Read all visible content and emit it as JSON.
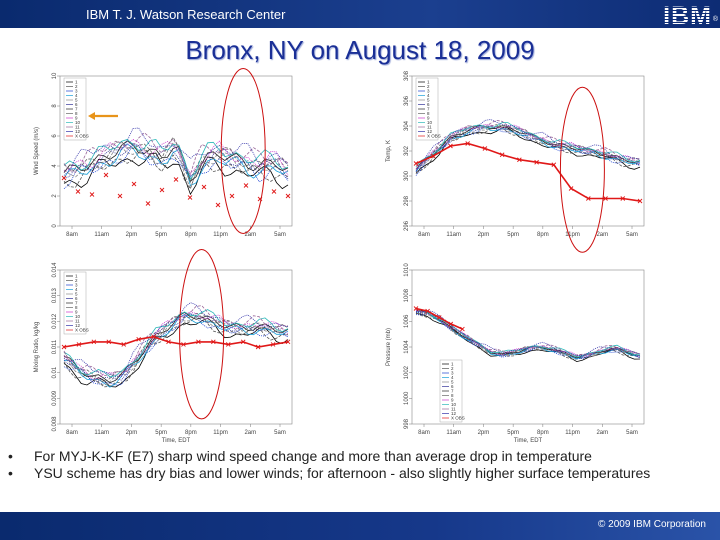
{
  "header": {
    "org": "IBM T. J. Watson Research Center",
    "logo": "IBM",
    "logo_mark": "®"
  },
  "title": "Bronx, NY on August 18, 2009",
  "bullets": [
    "For MYJ-K-KF (E7) sharp wind speed change and more than average drop in temperature",
    "YSU scheme has dry bias and lower winds; for afternoon - also slightly higher surface temperatures"
  ],
  "footer": {
    "copyright": "© 2009 IBM Corporation"
  },
  "legend": [
    "1",
    "2",
    "3",
    "4",
    "5",
    "6",
    "7",
    "8",
    "9",
    "10",
    "11",
    "12",
    "X OBS"
  ],
  "colors": {
    "obs": "#e01818",
    "highlight_ellipse": "#cc1010",
    "arrow": "#e8941a"
  },
  "chart_data": [
    {
      "type": "line",
      "title": "",
      "ylabel": "Wind Speed (m/s)",
      "xlabel": "",
      "x_ticks": [
        "8am",
        "11am",
        "2pm",
        "5pm",
        "8pm",
        "11pm",
        "2am",
        "5am"
      ],
      "y_ticks": [
        0,
        2,
        4,
        6,
        8,
        10
      ],
      "ylim": [
        0,
        10
      ],
      "obs_values": [
        3.2,
        2.3,
        2.1,
        3.4,
        2.0,
        2.8,
        1.5,
        2.4,
        3.1,
        1.9,
        2.6,
        1.4,
        2.0,
        2.7,
        1.8,
        2.3,
        2.0
      ],
      "model_values": [
        3.5,
        3.8,
        4.1,
        4.6,
        5.1,
        5.3,
        4.9,
        4.6,
        5.4,
        3.0,
        4.4,
        4.8,
        4.5,
        4.1,
        3.9,
        4.3,
        3.6
      ],
      "spread": 1.1,
      "annotation": {
        "ellipse_x": 5.6,
        "ellipse_y": 5,
        "arrow_to_legend": true
      }
    },
    {
      "type": "line",
      "title": "",
      "ylabel": "Temp, K",
      "xlabel": "",
      "x_ticks": [
        "8am",
        "11am",
        "2pm",
        "5pm",
        "8pm",
        "11pm",
        "2am",
        "5am"
      ],
      "y_ticks": [
        296,
        298,
        300,
        302,
        304,
        306,
        308
      ],
      "ylim": [
        296,
        308
      ],
      "obs_values": [
        301.0,
        301.6,
        302.4,
        302.6,
        302.2,
        301.7,
        301.3,
        301.1,
        300.9,
        299.0,
        298.2,
        298.2,
        298.2,
        298.0
      ],
      "model_values": [
        300.5,
        301.8,
        303.0,
        303.7,
        303.9,
        303.9,
        303.6,
        303.0,
        302.5,
        302.3,
        302.0,
        301.7,
        301.3,
        301.1
      ],
      "spread": 0.5,
      "annotation": {
        "ellipse_x": 5.2,
        "ellipse_y": 300.5
      }
    },
    {
      "type": "line",
      "title": "",
      "ylabel": "Mixing Ratio, kg/kg",
      "xlabel": "Time, EDT",
      "x_ticks": [
        "8am",
        "11am",
        "2pm",
        "5pm",
        "8pm",
        "11pm",
        "2am",
        "5am"
      ],
      "y_ticks": [
        0.008,
        0.009,
        0.01,
        0.011,
        0.012,
        0.013,
        0.014
      ],
      "ylim": [
        0.008,
        0.014
      ],
      "obs_values": [
        0.011,
        0.0111,
        0.0112,
        0.0112,
        0.0111,
        0.0113,
        0.0114,
        0.0112,
        0.0111,
        0.0112,
        0.0112,
        0.0111,
        0.0112,
        0.011,
        0.0111,
        0.0112
      ],
      "model_values": [
        0.0106,
        0.0101,
        0.0098,
        0.0097,
        0.0099,
        0.0106,
        0.0113,
        0.0118,
        0.0122,
        0.0122,
        0.012,
        0.0118,
        0.0117,
        0.0118,
        0.0117,
        0.0116
      ],
      "spread": 0.0004,
      "annotation": {
        "ellipse_x": 4.3,
        "ellipse_y": 0.0115
      }
    },
    {
      "type": "line",
      "title": "",
      "ylabel": "Pressure (mb)",
      "xlabel": "Time, EDT",
      "x_ticks": [
        "8am",
        "11am",
        "2pm",
        "5pm",
        "8pm",
        "11pm",
        "2am",
        "5am"
      ],
      "y_ticks": [
        998,
        1000,
        1002,
        1004,
        1006,
        1008,
        1010
      ],
      "ylim": [
        998,
        1010
      ],
      "obs_values": [
        1007.0,
        1006.8,
        1006.3,
        1005.8,
        1005.4
      ],
      "model_values": [
        1006.8,
        1006.6,
        1006.1,
        1005.3,
        1004.8,
        1004.2,
        1003.6,
        1003.4,
        1003.6,
        1003.9,
        1004.0,
        1003.8,
        1003.5,
        1003.2,
        1003.4,
        1003.7,
        1003.9,
        1003.6,
        1003.3
      ],
      "spread": 0.3,
      "annotation": null
    }
  ]
}
